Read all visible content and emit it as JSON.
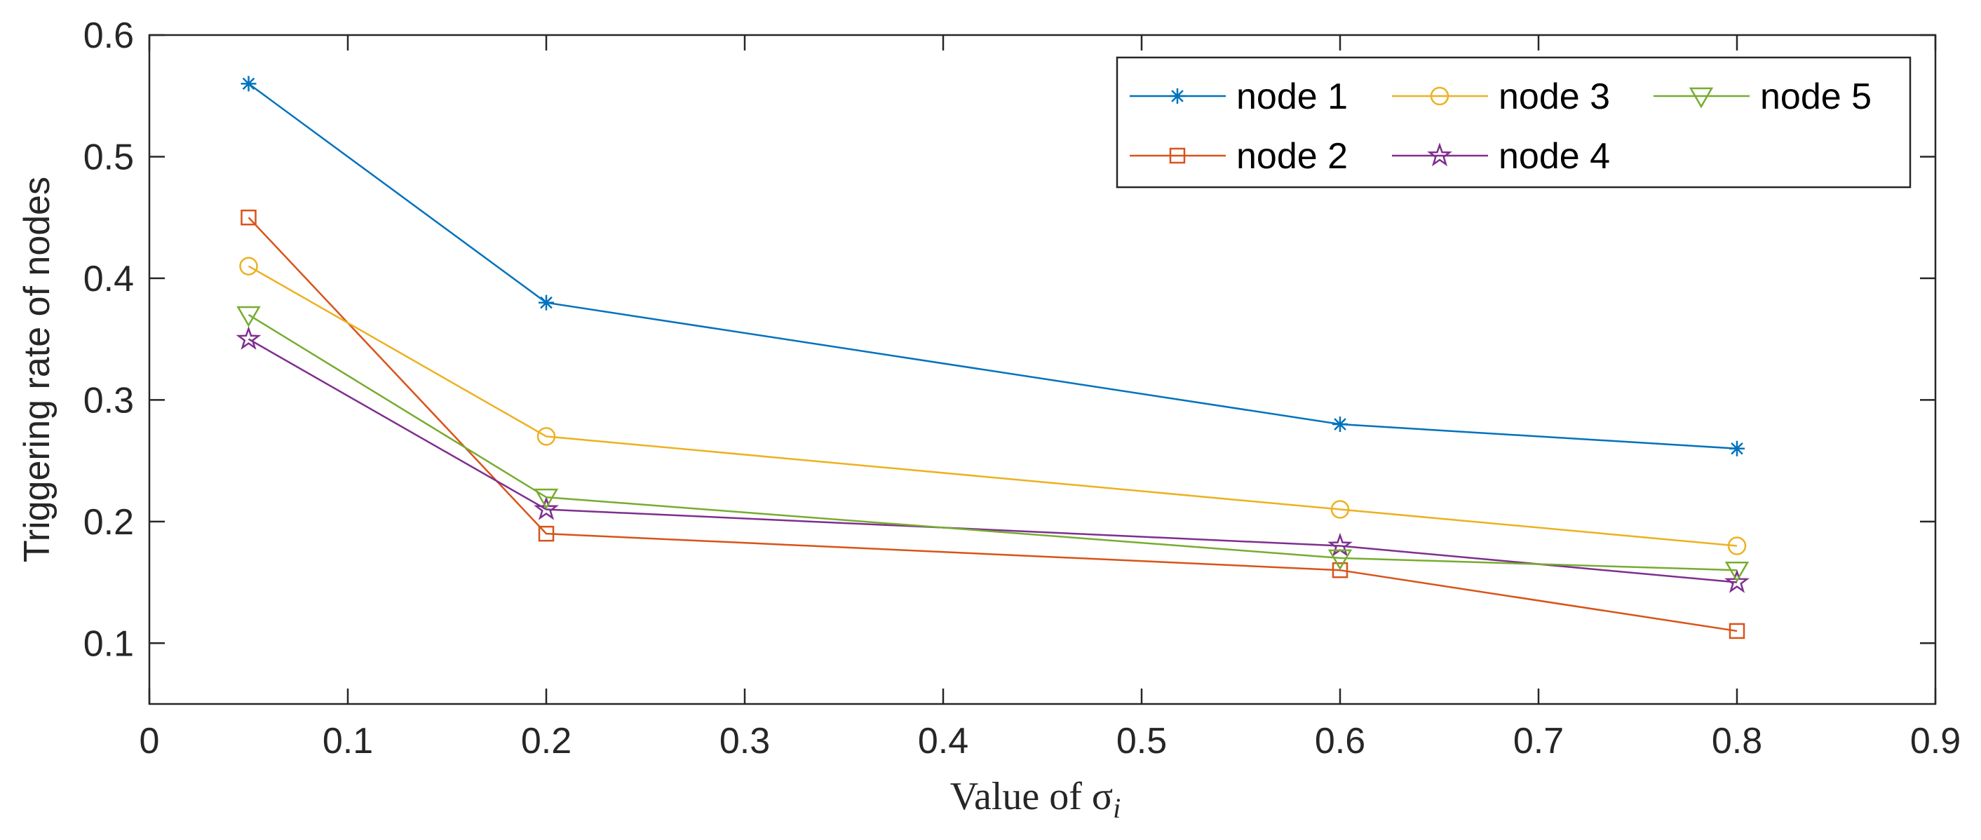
{
  "chart_data": {
    "type": "line",
    "title": "",
    "xlabel": "Value of σ",
    "xlabel_subscript": "i",
    "ylabel": "Triggering rate of nodes",
    "xlim": [
      0,
      0.9
    ],
    "ylim": [
      0.05,
      0.6
    ],
    "xticks": [
      0,
      0.1,
      0.2,
      0.3,
      0.4,
      0.5,
      0.6,
      0.7,
      0.8,
      0.9
    ],
    "xtick_labels": [
      "0",
      "0.1",
      "0.2",
      "0.3",
      "0.4",
      "0.5",
      "0.6",
      "0.7",
      "0.8",
      "0.9"
    ],
    "yticks": [
      0.1,
      0.2,
      0.3,
      0.4,
      0.5,
      0.6
    ],
    "ytick_labels": [
      "0.1",
      "0.2",
      "0.3",
      "0.4",
      "0.5",
      "0.6"
    ],
    "grid": false,
    "legend_position": "top-right",
    "x": [
      0.05,
      0.2,
      0.6,
      0.8
    ],
    "series": [
      {
        "name": "node 1",
        "values": [
          0.56,
          0.38,
          0.28,
          0.26
        ],
        "color": "#0072BD",
        "marker": "asterisk"
      },
      {
        "name": "node 2",
        "values": [
          0.45,
          0.19,
          0.16,
          0.11
        ],
        "color": "#D95319",
        "marker": "square"
      },
      {
        "name": "node 3",
        "values": [
          0.41,
          0.27,
          0.21,
          0.18
        ],
        "color": "#EDB120",
        "marker": "circle"
      },
      {
        "name": "node 4",
        "values": [
          0.35,
          0.21,
          0.18,
          0.15
        ],
        "color": "#7E2F8E",
        "marker": "star"
      },
      {
        "name": "node 5",
        "values": [
          0.37,
          0.22,
          0.17,
          0.16
        ],
        "color": "#77AC30",
        "marker": "triangle-down"
      }
    ],
    "legend_order": [
      "node 1",
      "node 3",
      "node 5",
      "node 2",
      "node 4"
    ]
  }
}
